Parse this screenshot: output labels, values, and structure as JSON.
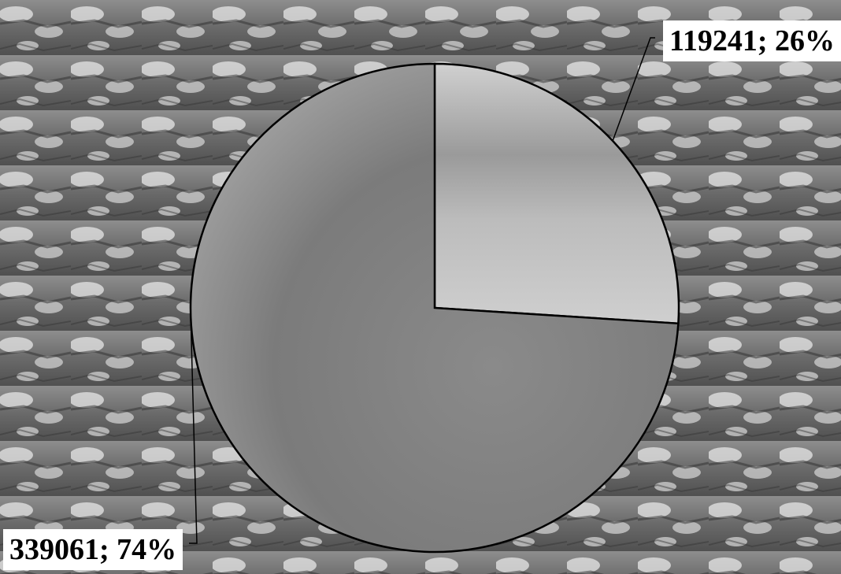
{
  "chart_data": {
    "type": "pie",
    "slices": [
      {
        "value": 119241,
        "percent": 26,
        "label": "119241; 26%",
        "color": "#c4c4c4"
      },
      {
        "value": 339061,
        "percent": 74,
        "label": "339061; 74%",
        "color": "#8a8a8a"
      }
    ],
    "start_angle": "12 o'clock",
    "direction": "clockwise",
    "legend": "none",
    "background": "snow-covered fir trees photograph (grayscale)"
  }
}
